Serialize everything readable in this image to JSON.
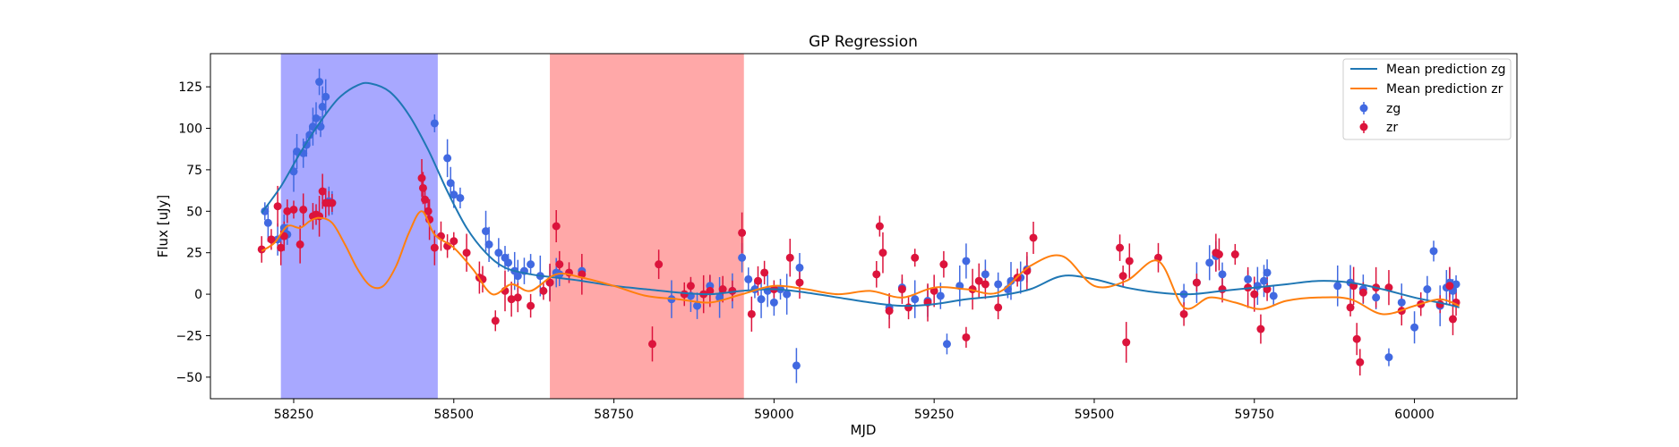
{
  "chart_data": {
    "type": "scatter",
    "title": "GP Regression",
    "xlabel": "MJD",
    "ylabel": "Flux [uJy]",
    "xlim": [
      58120,
      60160
    ],
    "ylim": [
      -63,
      145
    ],
    "xticks": [
      58250,
      58500,
      58750,
      59000,
      59250,
      59500,
      59750,
      60000
    ],
    "yticks": [
      -50,
      -25,
      0,
      25,
      50,
      75,
      100,
      125
    ],
    "grid": false,
    "legend_position": "top-right",
    "legend": [
      "Mean prediction zg",
      "Mean prediction zr",
      "zg",
      "zr"
    ],
    "shaded_regions": [
      {
        "x0": 58230,
        "x1": 58475,
        "color": "#0000ff",
        "opacity": 0.34
      },
      {
        "x0": 58650,
        "x1": 58953,
        "color": "#ff0000",
        "opacity": 0.34
      }
    ],
    "colors": {
      "zg_line": "#1f77b4",
      "zr_line": "#ff7f0e",
      "zg_points": "#4169e1",
      "zr_points": "#dc143c"
    },
    "lines": [
      {
        "name": "Mean prediction zg",
        "x": [
          58200,
          58230,
          58260,
          58290,
          58320,
          58350,
          58370,
          58400,
          58430,
          58460,
          58490,
          58520,
          58550,
          58580,
          58620,
          58660,
          58700,
          58750,
          58800,
          58850,
          58900,
          58950,
          59000,
          59050,
          59100,
          59150,
          59200,
          59250,
          59300,
          59350,
          59400,
          59450,
          59500,
          59550,
          59600,
          59650,
          59700,
          59750,
          59800,
          59850,
          59900,
          59950,
          60000,
          60050,
          60070
        ],
        "y": [
          49,
          65,
          85,
          103,
          118,
          126,
          127,
          122,
          108,
          87,
          62,
          40,
          25,
          16,
          12,
          10,
          8,
          5,
          3,
          1,
          0,
          2,
          3,
          1,
          -2,
          -5,
          -7,
          -6,
          -3,
          -1,
          3,
          11,
          9,
          4,
          1,
          0,
          2,
          4,
          6,
          8,
          7,
          3,
          -2,
          -6,
          -8
        ]
      },
      {
        "name": "Mean prediction zr",
        "x": [
          58200,
          58220,
          58240,
          58260,
          58275,
          58290,
          58310,
          58330,
          58350,
          58370,
          58390,
          58410,
          58430,
          58450,
          58470,
          58500,
          58530,
          58560,
          58590,
          58620,
          58660,
          58700,
          58750,
          58800,
          58850,
          58900,
          58950,
          59000,
          59050,
          59100,
          59150,
          59200,
          59250,
          59300,
          59350,
          59400,
          59450,
          59500,
          59550,
          59600,
          59640,
          59680,
          59720,
          59760,
          59800,
          59850,
          59900,
          59950,
          60000,
          60040,
          60070
        ],
        "y": [
          26,
          31,
          41,
          40,
          44,
          46,
          43,
          30,
          15,
          5,
          5,
          17,
          37,
          50,
          36,
          28,
          15,
          0,
          6,
          2,
          12,
          10,
          5,
          -1,
          -3,
          -5,
          0,
          5,
          3,
          0,
          2,
          -2,
          4,
          3,
          1,
          17,
          23,
          5,
          8,
          20,
          -8,
          -2,
          -5,
          -9,
          -4,
          -2,
          -3,
          -12,
          -7,
          -3,
          -7
        ]
      }
    ],
    "series": [
      {
        "name": "zg",
        "x": [
          58205,
          58210,
          58225,
          58235,
          58240,
          58250,
          58255,
          58265,
          58270,
          58275,
          58280,
          58285,
          58290,
          58292,
          58295,
          58300,
          58305,
          58310,
          58470,
          58490,
          58495,
          58500,
          58510,
          58550,
          58555,
          58570,
          58580,
          58585,
          58595,
          58600,
          58610,
          58620,
          58635,
          58650,
          58660,
          58665,
          58700,
          58840,
          58870,
          58880,
          58900,
          58915,
          58935,
          58950,
          58960,
          58970,
          58980,
          58990,
          59000,
          59010,
          59020,
          59035,
          59040,
          59180,
          59200,
          59220,
          59240,
          59260,
          59270,
          59290,
          59300,
          59330,
          59350,
          59365,
          59370,
          59385,
          59395,
          59640,
          59660,
          59680,
          59690,
          59700,
          59740,
          59755,
          59765,
          59770,
          59780,
          59880,
          59900,
          59920,
          59940,
          59960,
          59980,
          60000,
          60020,
          60030,
          60040,
          60050,
          60055,
          60060,
          60065
        ],
        "y": [
          50,
          43,
          33,
          40,
          36,
          74,
          86,
          85,
          90,
          96,
          101,
          106,
          128,
          101,
          113,
          119,
          56,
          55,
          103,
          82,
          67,
          60,
          58,
          38,
          30,
          25,
          22,
          19,
          14,
          11,
          14,
          18,
          11,
          7,
          13,
          12,
          14,
          -3,
          -1,
          -7,
          5,
          -2,
          2,
          22,
          9,
          3,
          -3,
          2,
          -5,
          3,
          0,
          -43,
          16,
          -8,
          4,
          -3,
          -4,
          -1,
          -30,
          5,
          20,
          12,
          6,
          3,
          8,
          10,
          15,
          0,
          7,
          19,
          23,
          12,
          9,
          5,
          8,
          13,
          -1,
          5,
          7,
          3,
          -2,
          -38,
          -5,
          -20,
          3,
          26,
          -7,
          4,
          7,
          2,
          6
        ]
      },
      {
        "name": "zr",
        "x": [
          58200,
          58215,
          58225,
          58230,
          58235,
          58240,
          58250,
          58260,
          58265,
          58280,
          58285,
          58290,
          58295,
          58300,
          58305,
          58310,
          58450,
          58452,
          58455,
          58460,
          58462,
          58470,
          58480,
          58490,
          58500,
          58520,
          58540,
          58545,
          58565,
          58580,
          58590,
          58600,
          58620,
          58640,
          58650,
          58660,
          58665,
          58680,
          58700,
          58810,
          58820,
          58860,
          58870,
          58890,
          58900,
          58920,
          58935,
          58950,
          58965,
          58975,
          58985,
          59000,
          59025,
          59040,
          59160,
          59165,
          59170,
          59180,
          59200,
          59210,
          59220,
          59240,
          59250,
          59265,
          59300,
          59310,
          59320,
          59330,
          59350,
          59380,
          59395,
          59405,
          59540,
          59545,
          59550,
          59555,
          59600,
          59640,
          59660,
          59690,
          59695,
          59700,
          59720,
          59740,
          59750,
          59760,
          59770,
          59900,
          59905,
          59910,
          59915,
          59920,
          59940,
          59960,
          59980,
          60010,
          60040,
          60055,
          60060,
          60065
        ],
        "y": [
          27,
          33,
          53,
          28,
          35,
          50,
          51,
          30,
          51,
          47,
          48,
          47,
          62,
          55,
          55,
          55,
          70,
          64,
          57,
          50,
          45,
          28,
          35,
          29,
          32,
          25,
          10,
          9,
          -16,
          2,
          -3,
          -2,
          -7,
          2,
          7,
          41,
          18,
          13,
          12,
          -30,
          18,
          0,
          5,
          0,
          2,
          3,
          2,
          37,
          -12,
          8,
          13,
          3,
          22,
          7,
          12,
          41,
          25,
          -10,
          3,
          -8,
          22,
          -5,
          2,
          18,
          -26,
          3,
          8,
          6,
          -8,
          10,
          14,
          34,
          28,
          11,
          -29,
          20,
          22,
          -12,
          7,
          25,
          24,
          3,
          24,
          4,
          0,
          -21,
          3,
          -8,
          5,
          -27,
          -41,
          1,
          4,
          4,
          -10,
          -6,
          -6,
          5,
          -15,
          -5
        ]
      }
    ]
  }
}
